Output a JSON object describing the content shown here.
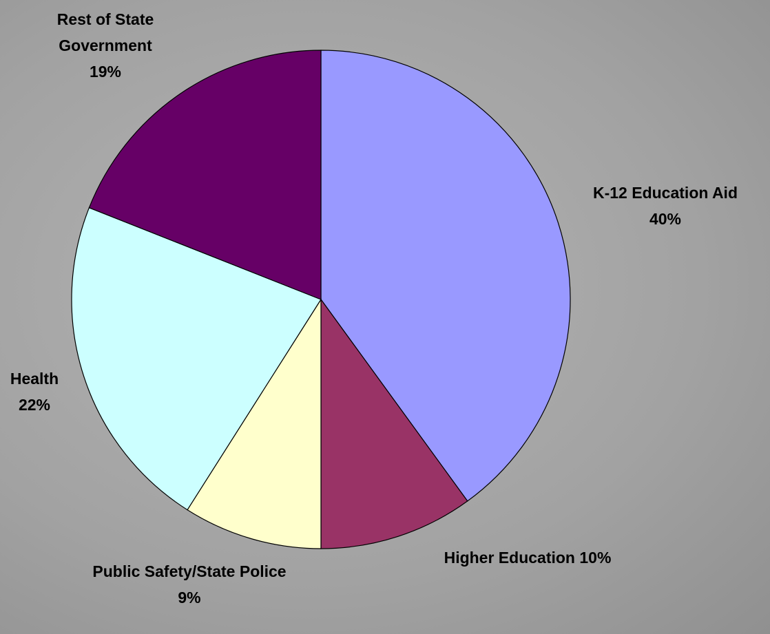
{
  "chart_data": {
    "type": "pie",
    "categories": [
      "K-12 Education Aid",
      "Higher Education",
      "Public Safety/State Police",
      "Health",
      "Rest of State Government"
    ],
    "values": [
      40,
      10,
      9,
      22,
      19
    ],
    "value_labels": [
      "40%",
      "10%",
      "9%",
      "22%",
      "19%"
    ],
    "colors": [
      "#9999ff",
      "#993366",
      "#ffffcc",
      "#ccffff",
      "#660066"
    ]
  }
}
